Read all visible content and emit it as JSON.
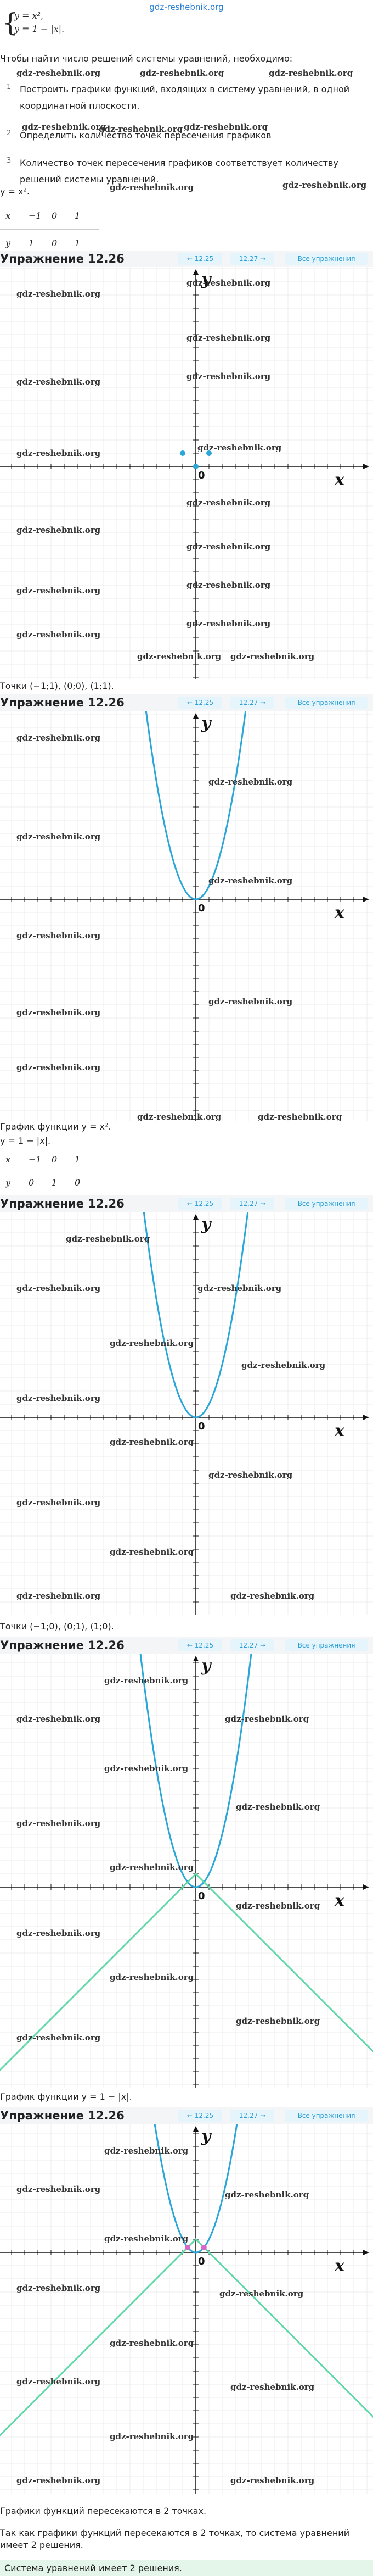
{
  "header": {
    "site": "gdz-reshebnik.org"
  },
  "system": [
    "y = x²,",
    "y = 1 − |x|."
  ],
  "intro": "Чтобы найти число решений системы уравнений, необходимо:",
  "steps": [
    {
      "num": "1",
      "text": "Построить графики функций, входящих в систему уравнений, в одной координатной плоскости."
    },
    {
      "num": "2",
      "text": "Определить количество точек пересечения графиков"
    },
    {
      "num": "3",
      "text": "Количество точек пересечения графиков соответствует количеству решений системы уравнений."
    }
  ],
  "watermark": "gdz-reshebnik.org",
  "exercise_nav": {
    "title": "Упражнение 12.26",
    "prev": "← 12.25",
    "next": "12.27 →",
    "all": "Все упражнения"
  },
  "axes": {
    "x": "x",
    "y": "y",
    "origin": "0"
  },
  "colors": {
    "parabola": "#2aa7d8",
    "abs": "#5fd8a8"
  },
  "content": [
    {
      "kind": "text",
      "text": "y = x²."
    },
    {
      "kind": "table",
      "rows": [
        [
          "x",
          "−1",
          "0",
          "1"
        ],
        [
          "y",
          "1",
          "0",
          "1"
        ]
      ]
    },
    {
      "kind": "panel",
      "curves": [],
      "points": [
        [
          -1,
          1
        ],
        [
          0,
          0
        ],
        [
          1,
          1
        ]
      ],
      "point_color": "#2aa7d8"
    },
    {
      "kind": "text",
      "text": "Точки (−1;1), (0;0), (1;1)."
    },
    {
      "kind": "panel",
      "curves": [
        "parabola"
      ],
      "points": [],
      "point_color": "#2aa7d8"
    },
    {
      "kind": "text",
      "text": "График функции y = x²."
    },
    {
      "kind": "text",
      "text": "y = 1 − |x|."
    },
    {
      "kind": "table",
      "rows": [
        [
          "x",
          "−1",
          "0",
          "1"
        ],
        [
          "y",
          "0",
          "1",
          "0"
        ]
      ]
    },
    {
      "kind": "panel",
      "curves": [
        "parabola"
      ],
      "points": [],
      "point_color": "#5fd8a8"
    },
    {
      "kind": "text",
      "text": "Точки (−1;0), (0;1), (1;0)."
    },
    {
      "kind": "panel",
      "curves": [
        "parabola",
        "abs"
      ],
      "points": [],
      "point_color": "#5fd8a8"
    },
    {
      "kind": "text",
      "text": "График функции y = 1 − |x|."
    },
    {
      "kind": "panel",
      "curves": [
        "parabola",
        "abs"
      ],
      "points": [
        [
          -0.62,
          0.38
        ],
        [
          0.62,
          0.38
        ]
      ],
      "point_color": "#d966c9"
    },
    {
      "kind": "text",
      "text": "Графики функций пересекаются в 2 точках."
    },
    {
      "kind": "text",
      "text": "Так как графики функций пересекаются в 2 точках, то система уравнений имеет 2 решения."
    },
    {
      "kind": "answer",
      "text": "Система уравнений имеет 2 решения."
    }
  ]
}
